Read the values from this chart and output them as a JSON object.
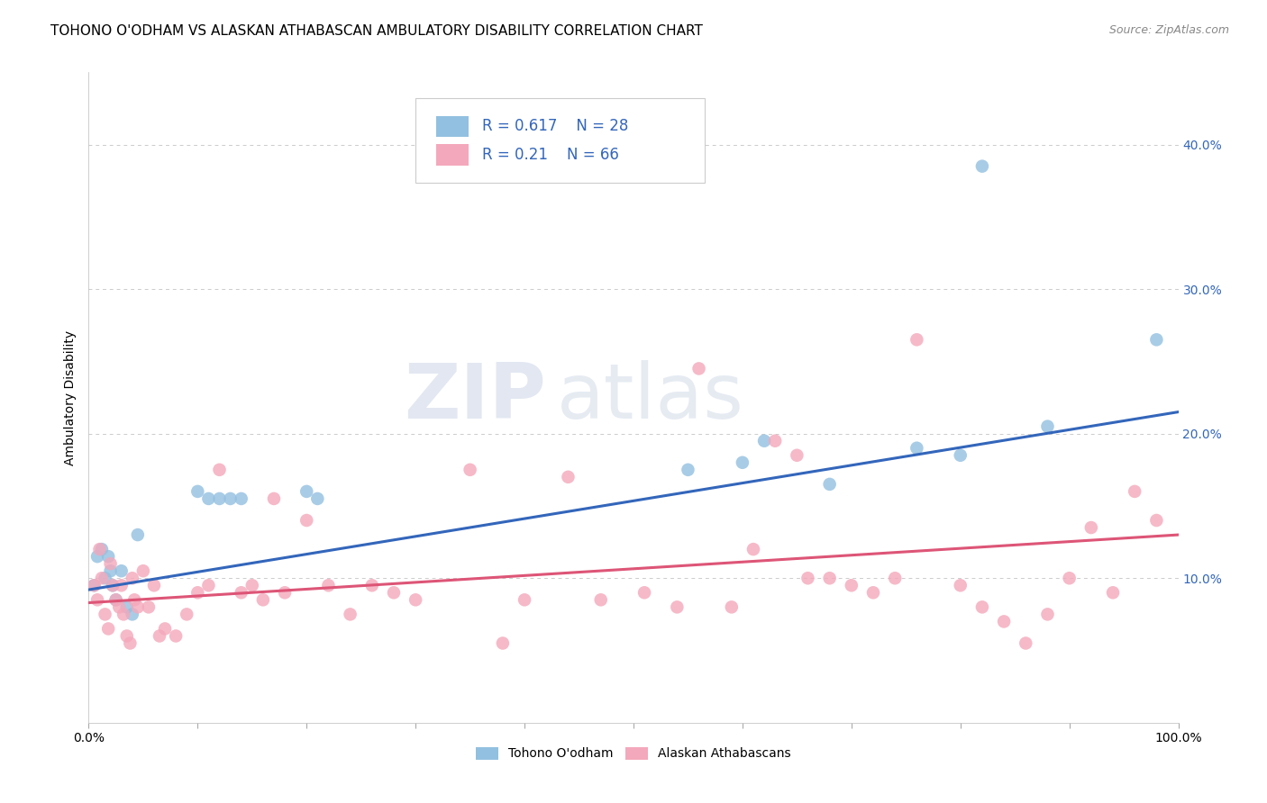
{
  "title": "TOHONO O'ODHAM VS ALASKAN ATHABASCAN AMBULATORY DISABILITY CORRELATION CHART",
  "source": "Source: ZipAtlas.com",
  "ylabel": "Ambulatory Disability",
  "xlim": [
    0,
    1.0
  ],
  "ylim": [
    0,
    0.45
  ],
  "xticks": [
    0.0,
    0.1,
    0.2,
    0.3,
    0.4,
    0.5,
    0.6,
    0.7,
    0.8,
    0.9,
    1.0
  ],
  "xticklabels": [
    "0.0%",
    "",
    "",
    "",
    "",
    "",
    "",
    "",
    "",
    "",
    "100.0%"
  ],
  "yticks": [
    0.0,
    0.1,
    0.2,
    0.3,
    0.4
  ],
  "yticklabels_right": [
    "",
    "10.0%",
    "20.0%",
    "30.0%",
    "40.0%"
  ],
  "blue_R": 0.617,
  "blue_N": 28,
  "pink_R": 0.21,
  "pink_N": 66,
  "blue_scatter_x": [
    0.005,
    0.008,
    0.012,
    0.015,
    0.018,
    0.02,
    0.022,
    0.025,
    0.03,
    0.035,
    0.04,
    0.045,
    0.1,
    0.11,
    0.12,
    0.13,
    0.14,
    0.2,
    0.21,
    0.55,
    0.6,
    0.62,
    0.68,
    0.76,
    0.8,
    0.82,
    0.88,
    0.98
  ],
  "blue_scatter_y": [
    0.095,
    0.115,
    0.12,
    0.1,
    0.115,
    0.105,
    0.095,
    0.085,
    0.105,
    0.08,
    0.075,
    0.13,
    0.16,
    0.155,
    0.155,
    0.155,
    0.155,
    0.16,
    0.155,
    0.175,
    0.18,
    0.195,
    0.165,
    0.19,
    0.185,
    0.385,
    0.205,
    0.265
  ],
  "pink_scatter_x": [
    0.005,
    0.008,
    0.01,
    0.012,
    0.015,
    0.018,
    0.02,
    0.022,
    0.025,
    0.028,
    0.03,
    0.032,
    0.035,
    0.038,
    0.04,
    0.042,
    0.045,
    0.05,
    0.055,
    0.06,
    0.065,
    0.07,
    0.08,
    0.09,
    0.1,
    0.11,
    0.12,
    0.14,
    0.15,
    0.16,
    0.17,
    0.18,
    0.2,
    0.22,
    0.24,
    0.26,
    0.28,
    0.3,
    0.35,
    0.38,
    0.4,
    0.44,
    0.47,
    0.51,
    0.54,
    0.56,
    0.59,
    0.61,
    0.63,
    0.65,
    0.66,
    0.68,
    0.7,
    0.72,
    0.74,
    0.76,
    0.8,
    0.82,
    0.84,
    0.86,
    0.88,
    0.9,
    0.92,
    0.94,
    0.96,
    0.98
  ],
  "pink_scatter_y": [
    0.095,
    0.085,
    0.12,
    0.1,
    0.075,
    0.065,
    0.11,
    0.095,
    0.085,
    0.08,
    0.095,
    0.075,
    0.06,
    0.055,
    0.1,
    0.085,
    0.08,
    0.105,
    0.08,
    0.095,
    0.06,
    0.065,
    0.06,
    0.075,
    0.09,
    0.095,
    0.175,
    0.09,
    0.095,
    0.085,
    0.155,
    0.09,
    0.14,
    0.095,
    0.075,
    0.095,
    0.09,
    0.085,
    0.175,
    0.055,
    0.085,
    0.17,
    0.085,
    0.09,
    0.08,
    0.245,
    0.08,
    0.12,
    0.195,
    0.185,
    0.1,
    0.1,
    0.095,
    0.09,
    0.1,
    0.265,
    0.095,
    0.08,
    0.07,
    0.055,
    0.075,
    0.1,
    0.135,
    0.09,
    0.16,
    0.14
  ],
  "blue_line_x": [
    0.0,
    1.0
  ],
  "blue_line_y": [
    0.092,
    0.215
  ],
  "pink_line_x": [
    0.0,
    1.0
  ],
  "pink_line_y": [
    0.083,
    0.13
  ],
  "blue_color": "#92c0e0",
  "pink_color": "#f4a8bb",
  "blue_line_color": "#3366bb",
  "pink_line_color": "#dd5577",
  "legend_label_blue": "Tohono O'odham",
  "legend_label_pink": "Alaskan Athabascans",
  "watermark_zip": "ZIP",
  "watermark_atlas": "atlas",
  "background_color": "#ffffff",
  "grid_color": "#cccccc",
  "title_fontsize": 11,
  "axis_label_fontsize": 10,
  "tick_fontsize": 10,
  "legend_fontsize": 12,
  "source_fontsize": 9
}
